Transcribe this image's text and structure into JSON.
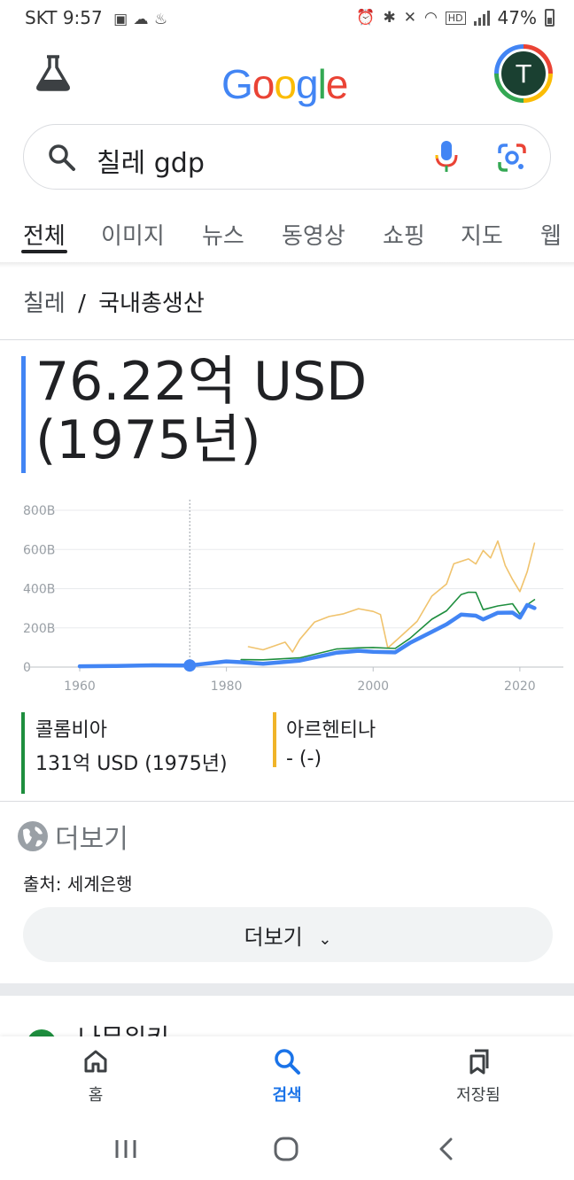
{
  "status_bar": {
    "carrier_time": "SKT 9:57",
    "battery": "47%"
  },
  "header": {
    "logo": "Google",
    "logo_colors": [
      "#4285f4",
      "#ea4335",
      "#fbbc05",
      "#4285f4",
      "#34a853",
      "#ea4335"
    ],
    "avatar_initial": "T"
  },
  "search": {
    "query": "칠레 gdp"
  },
  "tabs": [
    {
      "label": "전체",
      "active": true
    },
    {
      "label": "이미지"
    },
    {
      "label": "뉴스"
    },
    {
      "label": "동영상"
    },
    {
      "label": "쇼핑"
    },
    {
      "label": "지도"
    },
    {
      "label": "웹"
    }
  ],
  "breadcrumb": {
    "country": "칠레",
    "separator": "/",
    "metric": "국내총생산"
  },
  "main_value": {
    "line1": "76.22억 USD",
    "line2": "(1975년)"
  },
  "chart_data": {
    "type": "line",
    "x_ticks": [
      "1960",
      "1980",
      "2000",
      "2020"
    ],
    "y_ticks": [
      "800B",
      "600B",
      "400B",
      "200B",
      "0"
    ],
    "xlim": [
      1960,
      2024
    ],
    "ylim": [
      0,
      800
    ],
    "highlight_x": 1975,
    "series": [
      {
        "name": "칠레",
        "color": "#4285f4",
        "x": [
          1960,
          1965,
          1970,
          1975,
          1980,
          1982,
          1985,
          1990,
          1995,
          1998,
          2000,
          2003,
          2005,
          2008,
          2010,
          2012,
          2014,
          2015,
          2017,
          2019,
          2020,
          2021,
          2022
        ],
        "y": [
          4,
          6,
          9,
          8,
          29,
          25,
          17,
          33,
          73,
          83,
          78,
          75,
          123,
          180,
          218,
          268,
          262,
          243,
          277,
          278,
          252,
          317,
          301
        ]
      },
      {
        "name": "콜롬비아",
        "color": "#1e8e3e",
        "x": [
          1982,
          1985,
          1990,
          1995,
          1998,
          2000,
          2003,
          2005,
          2008,
          2010,
          2012,
          2013,
          2014,
          2015,
          2017,
          2019,
          2020,
          2021,
          2022
        ],
        "y": [
          38,
          37,
          47,
          92,
          98,
          100,
          95,
          146,
          244,
          287,
          370,
          382,
          381,
          293,
          312,
          323,
          270,
          318,
          344
        ]
      },
      {
        "name": "아르헨티나",
        "color": "#f0c36d",
        "x": [
          1983,
          1985,
          1988,
          1989,
          1990,
          1992,
          1994,
          1996,
          1998,
          2000,
          2001,
          2002,
          2004,
          2006,
          2008,
          2010,
          2011,
          2013,
          2014,
          2015,
          2016,
          2017,
          2018,
          2019,
          2020,
          2021,
          2022
        ],
        "y": [
          104,
          88,
          127,
          77,
          141,
          229,
          258,
          272,
          298,
          284,
          268,
          97,
          165,
          233,
          362,
          424,
          527,
          552,
          526,
          595,
          557,
          643,
          519,
          447,
          385,
          487,
          632
        ]
      }
    ]
  },
  "legend": [
    {
      "name": "콜롬비아",
      "value": "131억 USD (1975년)",
      "color": "#1e8e3e"
    },
    {
      "name": "아르헨티나",
      "value": "- (-)",
      "color": "#f0b429"
    }
  ],
  "more_link": "더보기",
  "source": "출처: 세계은행",
  "more_button": "더보기",
  "peek_result": "나무위키",
  "bottom_nav": [
    {
      "label": "홈",
      "icon": "home-icon",
      "active": false
    },
    {
      "label": "검색",
      "icon": "search-icon",
      "active": true
    },
    {
      "label": "저장됨",
      "icon": "bookmarks-icon",
      "active": false
    }
  ]
}
